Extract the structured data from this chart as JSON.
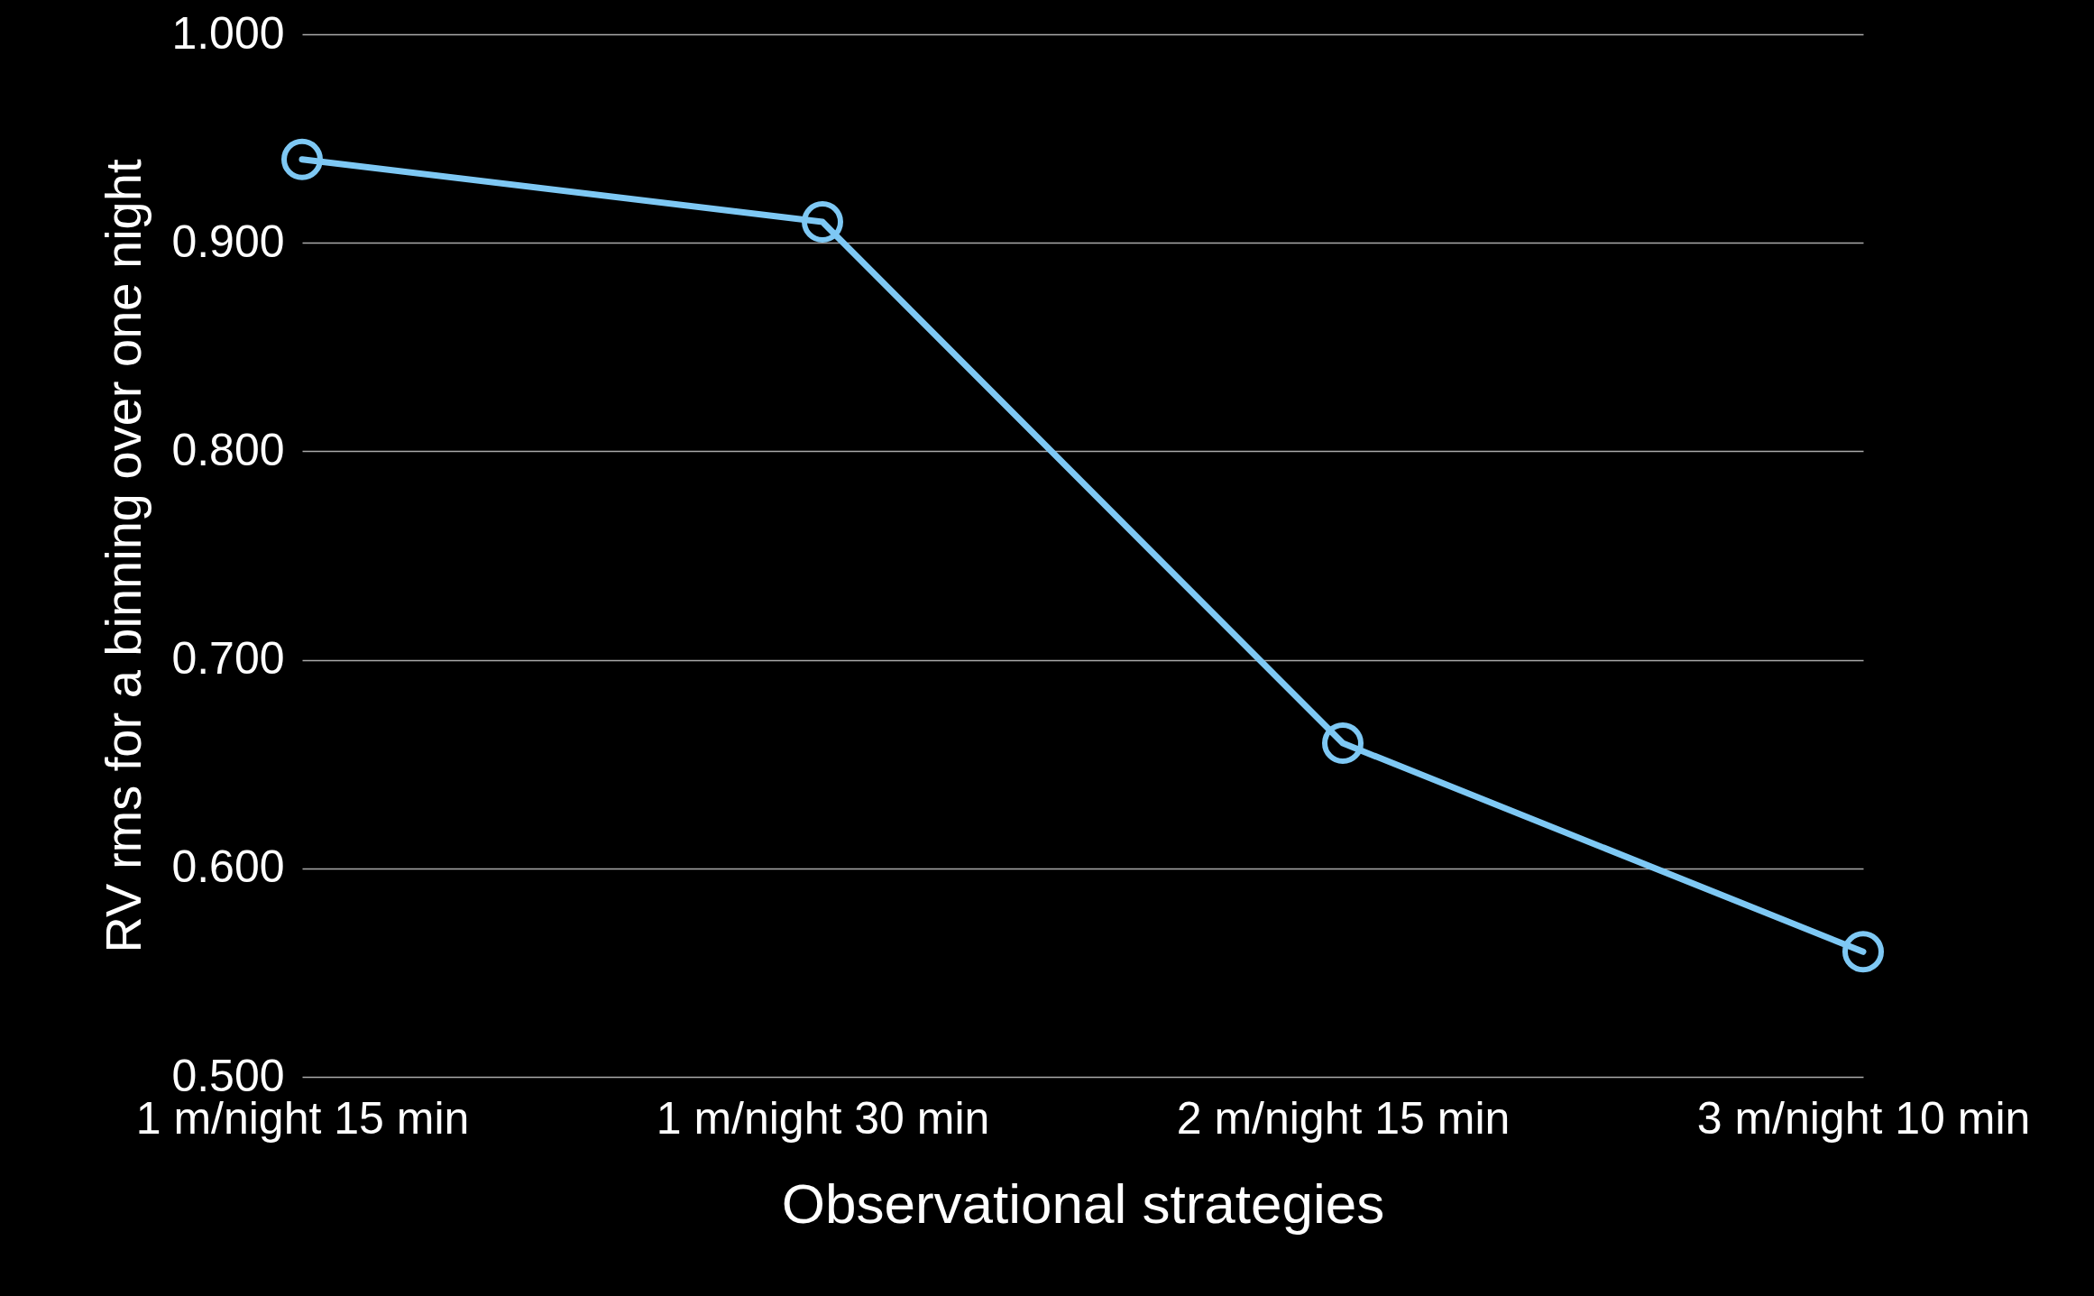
{
  "chart_data": {
    "type": "line",
    "xlabel": "Observational strategies",
    "ylabel": "RV rms for a binning over one night",
    "categories": [
      "1 m/night 15 min",
      "1 m/night 30 min",
      "2 m/night 15 min",
      "3 m/night 10 min"
    ],
    "series": [
      {
        "color": "#7ec8f4",
        "values": [
          0.94,
          0.91,
          0.66,
          0.56
        ]
      }
    ],
    "ylim": [
      0.5,
      1.0
    ],
    "yticks": [
      {
        "value": 0.5,
        "label": "0.500"
      },
      {
        "value": 0.6,
        "label": "0.600"
      },
      {
        "value": 0.7,
        "label": "0.700"
      },
      {
        "value": 0.8,
        "label": "0.800"
      },
      {
        "value": 0.9,
        "label": "0.900"
      },
      {
        "value": 1.0,
        "label": "1.000"
      }
    ],
    "grid": "y",
    "marker": "circle"
  }
}
